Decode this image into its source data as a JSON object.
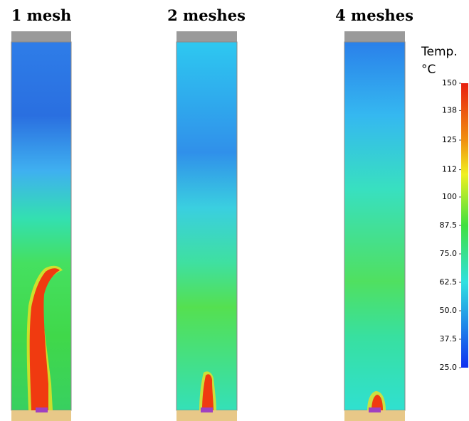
{
  "panels": [
    {
      "title": "1 mesh"
    },
    {
      "title": "2 meshes"
    },
    {
      "title": "4 meshes"
    }
  ],
  "colorbar": {
    "title": "Temp.",
    "unit": "°C",
    "range": [
      25,
      150
    ],
    "ticks": [
      150,
      138,
      125,
      112,
      100,
      {
        "value": 87.5,
        "label": "87.5"
      },
      {
        "value": 75,
        "label": "75.0"
      },
      {
        "value": 62.5,
        "label": "62.5"
      },
      {
        "value": 50,
        "label": "50.0"
      },
      {
        "value": 37.5,
        "label": "37.5"
      },
      {
        "value": 25,
        "label": "25.0"
      }
    ]
  }
}
